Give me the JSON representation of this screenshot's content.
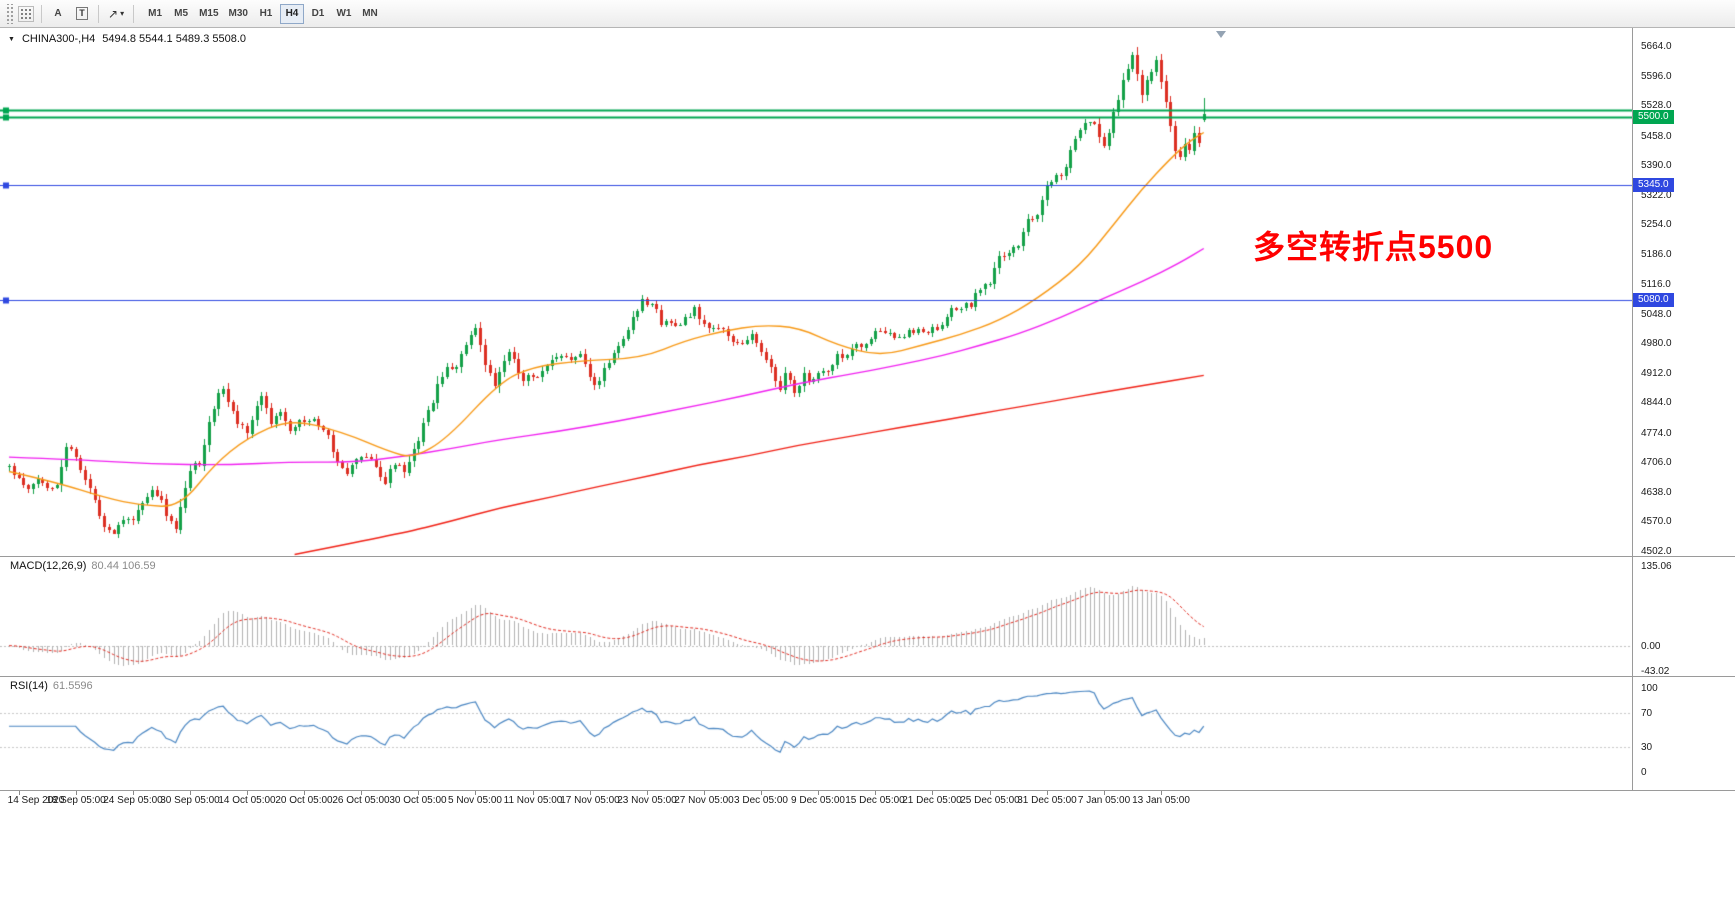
{
  "toolbar": {
    "a_button_label": "A",
    "t_button_label": "T",
    "timeframes": [
      "M1",
      "M5",
      "M15",
      "M30",
      "H1",
      "H4",
      "D1",
      "W1",
      "MN"
    ],
    "active_timeframe": "H4"
  },
  "chart": {
    "title_symbol": "CHINA300-,H4",
    "title_ohlc": "5494.8 5544.1 5489.3 5508.0"
  },
  "indicators": {
    "macd": {
      "label": "MACD(12,26,9)",
      "values": "80.44 106.59"
    },
    "rsi": {
      "label": "RSI(14)",
      "value": "61.5596"
    }
  },
  "annotation": {
    "text": "多空转折点5500",
    "color": "#ff0000"
  },
  "chart_data": {
    "type": "candlestick",
    "symbol": "CHINA300-",
    "period": "H4",
    "bars": 252,
    "seed": 11,
    "current_bar": {
      "open": 5494.8,
      "high": 5544.1,
      "low": 5489.3,
      "close": 5508.0
    },
    "candle_colors": {
      "up": "#14a148",
      "down": "#dc2f23"
    },
    "price_axis": {
      "min": 4502.0,
      "max": 5664.0,
      "labels": [
        "5664.0",
        "5596.0",
        "5528.0",
        "5458.0",
        "5390.0",
        "5322.0",
        "5254.0",
        "5186.0",
        "5116.0",
        "5048.0",
        "4980.0",
        "4912.0",
        "4844.0",
        "4774.0",
        "4706.0",
        "4638.0",
        "4570.0",
        "4502.0"
      ]
    },
    "time_axis": {
      "labels": [
        "14 Sep 2020",
        "18 Sep 05:00",
        "24 Sep 05:00",
        "30 Sep 05:00",
        "14 Oct 05:00",
        "20 Oct 05:00",
        "26 Oct 05:00",
        "30 Oct 05:00",
        "5 Nov 05:00",
        "11 Nov 05:00",
        "17 Nov 05:00",
        "23 Nov 05:00",
        "27 Nov 05:00",
        "3 Dec 05:00",
        "9 Dec 05:00",
        "15 Dec 05:00",
        "21 Dec 05:00",
        "25 Dec 05:00",
        "31 Dec 05:00",
        "7 Jan 05:00",
        "13 Jan 05:00"
      ]
    },
    "price_path": [
      [
        0,
        4695
      ],
      [
        2,
        4665
      ],
      [
        4,
        4640
      ],
      [
        6,
        4668
      ],
      [
        8,
        4645
      ],
      [
        10,
        4655
      ],
      [
        12,
        4745
      ],
      [
        14,
        4720
      ],
      [
        16,
        4665
      ],
      [
        18,
        4620
      ],
      [
        20,
        4560
      ],
      [
        22,
        4545
      ],
      [
        24,
        4580
      ],
      [
        26,
        4575
      ],
      [
        28,
        4610
      ],
      [
        30,
        4640
      ],
      [
        32,
        4615
      ],
      [
        34,
        4565
      ],
      [
        35,
        4550
      ],
      [
        36,
        4600
      ],
      [
        38,
        4690
      ],
      [
        40,
        4705
      ],
      [
        42,
        4800
      ],
      [
        44,
        4858
      ],
      [
        45,
        4875
      ],
      [
        47,
        4820
      ],
      [
        48,
        4795
      ],
      [
        50,
        4780
      ],
      [
        52,
        4840
      ],
      [
        53,
        4855
      ],
      [
        55,
        4800
      ],
      [
        57,
        4825
      ],
      [
        59,
        4785
      ],
      [
        61,
        4800
      ],
      [
        63,
        4802
      ],
      [
        65,
        4795
      ],
      [
        67,
        4760
      ],
      [
        69,
        4710
      ],
      [
        71,
        4675
      ],
      [
        73,
        4715
      ],
      [
        75,
        4720
      ],
      [
        77,
        4695
      ],
      [
        79,
        4660
      ],
      [
        81,
        4705
      ],
      [
        83,
        4680
      ],
      [
        84,
        4700
      ],
      [
        86,
        4760
      ],
      [
        88,
        4820
      ],
      [
        90,
        4880
      ],
      [
        92,
        4920
      ],
      [
        94,
        4930
      ],
      [
        96,
        4975
      ],
      [
        98,
        5010
      ],
      [
        100,
        4930
      ],
      [
        102,
        4880
      ],
      [
        104,
        4940
      ],
      [
        105,
        4960
      ],
      [
        107,
        4915
      ],
      [
        108,
        4900
      ],
      [
        110,
        4905
      ],
      [
        112,
        4910
      ],
      [
        114,
        4940
      ],
      [
        116,
        4945
      ],
      [
        118,
        4950
      ],
      [
        120,
        4950
      ],
      [
        122,
        4905
      ],
      [
        123,
        4880
      ],
      [
        125,
        4920
      ],
      [
        127,
        4960
      ],
      [
        129,
        4990
      ],
      [
        131,
        5040
      ],
      [
        133,
        5080
      ],
      [
        135,
        5070
      ],
      [
        137,
        5030
      ],
      [
        139,
        5025
      ],
      [
        141,
        5030
      ],
      [
        143,
        5040
      ],
      [
        144,
        5055
      ],
      [
        146,
        5020
      ],
      [
        148,
        5015
      ],
      [
        150,
        5010
      ],
      [
        151,
        4990
      ],
      [
        153,
        4985
      ],
      [
        155,
        4985
      ],
      [
        156,
        5000
      ],
      [
        158,
        4960
      ],
      [
        160,
        4920
      ],
      [
        162,
        4880
      ],
      [
        163,
        4905
      ],
      [
        165,
        4870
      ],
      [
        167,
        4905
      ],
      [
        168,
        4885
      ],
      [
        170,
        4915
      ],
      [
        172,
        4910
      ],
      [
        174,
        4950
      ],
      [
        176,
        4945
      ],
      [
        178,
        4975
      ],
      [
        180,
        4975
      ],
      [
        182,
        5005
      ],
      [
        184,
        5000
      ],
      [
        186,
        5000
      ],
      [
        188,
        5000
      ],
      [
        190,
        5005
      ],
      [
        192,
        5010
      ],
      [
        194,
        5010
      ],
      [
        196,
        5015
      ],
      [
        198,
        5055
      ],
      [
        200,
        5060
      ],
      [
        202,
        5070
      ],
      [
        204,
        5110
      ],
      [
        206,
        5120
      ],
      [
        208,
        5175
      ],
      [
        210,
        5190
      ],
      [
        212,
        5200
      ],
      [
        214,
        5265
      ],
      [
        216,
        5280
      ],
      [
        218,
        5345
      ],
      [
        220,
        5365
      ],
      [
        222,
        5380
      ],
      [
        224,
        5455
      ],
      [
        226,
        5480
      ],
      [
        228,
        5490
      ],
      [
        229,
        5460
      ],
      [
        230,
        5430
      ],
      [
        232,
        5510
      ],
      [
        234,
        5580
      ],
      [
        236,
        5650
      ],
      [
        237,
        5600
      ],
      [
        238,
        5555
      ],
      [
        239,
        5585
      ],
      [
        241,
        5640
      ],
      [
        242,
        5590
      ],
      [
        243,
        5530
      ],
      [
        244,
        5480
      ],
      [
        245,
        5430
      ],
      [
        246,
        5400
      ],
      [
        247,
        5445
      ],
      [
        248,
        5420
      ],
      [
        249,
        5460
      ],
      [
        250,
        5440
      ],
      [
        251,
        5495
      ]
    ],
    "moving_averages": [
      {
        "name": "fast-ma",
        "color": "#f79814",
        "points": [
          [
            0,
            4685
          ],
          [
            10,
            4660
          ],
          [
            20,
            4625
          ],
          [
            28,
            4606
          ],
          [
            36,
            4604
          ],
          [
            43,
            4700
          ],
          [
            50,
            4762
          ],
          [
            59,
            4806
          ],
          [
            70,
            4776
          ],
          [
            80,
            4730
          ],
          [
            85,
            4716
          ],
          [
            92,
            4760
          ],
          [
            103,
            4890
          ],
          [
            110,
            4926
          ],
          [
            120,
            4940
          ],
          [
            133,
            4946
          ],
          [
            142,
            4986
          ],
          [
            150,
            5008
          ],
          [
            158,
            5022
          ],
          [
            166,
            5016
          ],
          [
            174,
            4976
          ],
          [
            183,
            4950
          ],
          [
            192,
            4976
          ],
          [
            200,
            5000
          ],
          [
            208,
            5032
          ],
          [
            216,
            5082
          ],
          [
            225,
            5158
          ],
          [
            232,
            5252
          ],
          [
            238,
            5335
          ],
          [
            244,
            5405
          ],
          [
            248,
            5445
          ],
          [
            251,
            5465
          ]
        ]
      },
      {
        "name": "medium-ma",
        "color": "#f01ff0",
        "points": [
          [
            0,
            4718
          ],
          [
            15,
            4712
          ],
          [
            30,
            4702
          ],
          [
            45,
            4700
          ],
          [
            60,
            4707
          ],
          [
            72,
            4706
          ],
          [
            82,
            4718
          ],
          [
            93,
            4738
          ],
          [
            103,
            4758
          ],
          [
            116,
            4778
          ],
          [
            128,
            4801
          ],
          [
            141,
            4829
          ],
          [
            154,
            4858
          ],
          [
            166,
            4888
          ],
          [
            179,
            4913
          ],
          [
            187,
            4930
          ],
          [
            196,
            4951
          ],
          [
            204,
            4975
          ],
          [
            212,
            5001
          ],
          [
            221,
            5039
          ],
          [
            229,
            5079
          ],
          [
            238,
            5121
          ],
          [
            246,
            5165
          ],
          [
            251,
            5198
          ]
        ]
      },
      {
        "name": "slow-ma",
        "color": "#f02015",
        "points": [
          [
            60,
            4494
          ],
          [
            82,
            4541
          ],
          [
            93,
            4571
          ],
          [
            103,
            4601
          ],
          [
            114,
            4626
          ],
          [
            124,
            4651
          ],
          [
            135,
            4676
          ],
          [
            145,
            4701
          ],
          [
            156,
            4722
          ],
          [
            166,
            4746
          ],
          [
            177,
            4766
          ],
          [
            187,
            4786
          ],
          [
            198,
            4806
          ],
          [
            208,
            4826
          ],
          [
            219,
            4846
          ],
          [
            229,
            4866
          ],
          [
            240,
            4886
          ],
          [
            251,
            4906
          ]
        ]
      }
    ],
    "horizontal_lines": [
      {
        "price": 5516,
        "color": "#00a651",
        "w": 2,
        "label": null
      },
      {
        "price": 5500,
        "color": "#00a651",
        "w": 2,
        "label": "5500.0"
      },
      {
        "price": 5345,
        "color": "#2f48e0",
        "w": 1.2,
        "label": "5345.0"
      },
      {
        "price": 5080,
        "color": "#2f48e0",
        "w": 1.2,
        "label": "5080.0"
      }
    ],
    "macd": {
      "fast": 12,
      "slow": 26,
      "signal": 9,
      "axis_max": 135.06,
      "axis_min": -43.02,
      "axis_labels": [
        "135.06",
        "0.00",
        "-43.02"
      ],
      "histogram_color": "#b2b2b2",
      "signal_color": "#e02a20"
    },
    "rsi": {
      "period": 14,
      "levels": [
        70,
        30
      ],
      "axis_labels": [
        "100",
        "70",
        "30",
        "0"
      ],
      "line_color": "#4a86c2",
      "level_color": "#c6c6c6"
    }
  }
}
